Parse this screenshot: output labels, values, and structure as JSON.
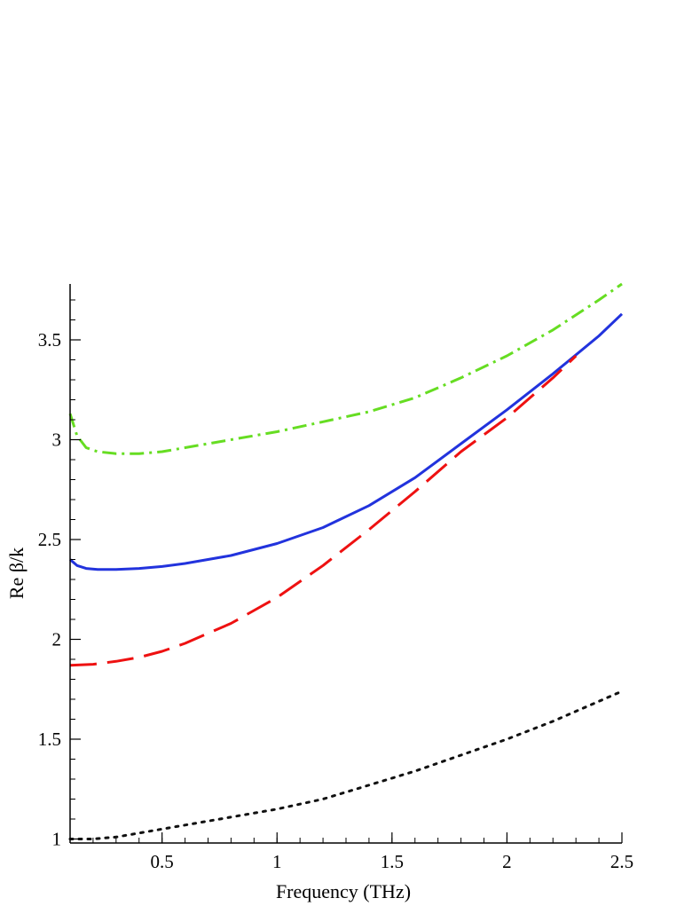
{
  "chart_data": {
    "type": "line",
    "title": "",
    "xlabel": "Frequency (THz)",
    "ylabel": "Re β/k",
    "xlim": [
      0.1,
      2.5
    ],
    "ylim": [
      0.98,
      3.78
    ],
    "xticks": [
      0.5,
      1,
      1.5,
      2,
      2.5
    ],
    "xtick_labels": [
      "0.5",
      "1",
      "1.5",
      "2",
      "2.5"
    ],
    "yticks": [
      1,
      1.5,
      2,
      2.5,
      3,
      3.5
    ],
    "ytick_labels": [
      "1",
      "1.5",
      "2",
      "2.5",
      "3",
      "3.5"
    ],
    "x_minor_step": 0.1,
    "y_minor_step": 0.1,
    "grid": false,
    "legend": "none",
    "series": [
      {
        "color": "#66dd22",
        "dash": "16 6 3 6",
        "x": [
          0.1,
          0.13,
          0.17,
          0.22,
          0.3,
          0.4,
          0.5,
          0.6,
          0.8,
          1.0,
          1.2,
          1.4,
          1.6,
          1.8,
          2.0,
          2.2,
          2.4,
          2.5
        ],
        "y": [
          3.13,
          3.02,
          2.96,
          2.94,
          2.93,
          2.93,
          2.94,
          2.96,
          3.0,
          3.04,
          3.09,
          3.14,
          3.21,
          3.31,
          3.42,
          3.55,
          3.7,
          3.78
        ]
      },
      {
        "color": "#2233dd",
        "dash": "",
        "x": [
          0.1,
          0.13,
          0.17,
          0.22,
          0.3,
          0.4,
          0.5,
          0.6,
          0.8,
          1.0,
          1.2,
          1.4,
          1.6,
          1.8,
          2.0,
          2.2,
          2.4,
          2.5
        ],
        "y": [
          2.4,
          2.37,
          2.355,
          2.35,
          2.35,
          2.355,
          2.365,
          2.38,
          2.42,
          2.48,
          2.56,
          2.67,
          2.81,
          2.98,
          3.15,
          3.33,
          3.52,
          3.63
        ]
      },
      {
        "color": "#ee1111",
        "dash": "30 12",
        "x": [
          0.1,
          0.2,
          0.3,
          0.4,
          0.5,
          0.6,
          0.8,
          1.0,
          1.2,
          1.4,
          1.6,
          1.8,
          2.0,
          2.2,
          2.3
        ],
        "y": [
          1.87,
          1.875,
          1.89,
          1.91,
          1.94,
          1.98,
          2.08,
          2.21,
          2.37,
          2.55,
          2.74,
          2.94,
          3.11,
          3.31,
          3.42
        ]
      },
      {
        "color": "#111111",
        "dash": "3 7",
        "x": [
          0.1,
          0.2,
          0.3,
          0.4,
          0.6,
          0.8,
          1.0,
          1.2,
          1.4,
          1.6,
          1.8,
          2.0,
          2.2,
          2.4,
          2.5
        ],
        "y": [
          1.0,
          1.0,
          1.01,
          1.03,
          1.07,
          1.11,
          1.15,
          1.2,
          1.27,
          1.34,
          1.42,
          1.5,
          1.59,
          1.69,
          1.74
        ]
      }
    ]
  }
}
